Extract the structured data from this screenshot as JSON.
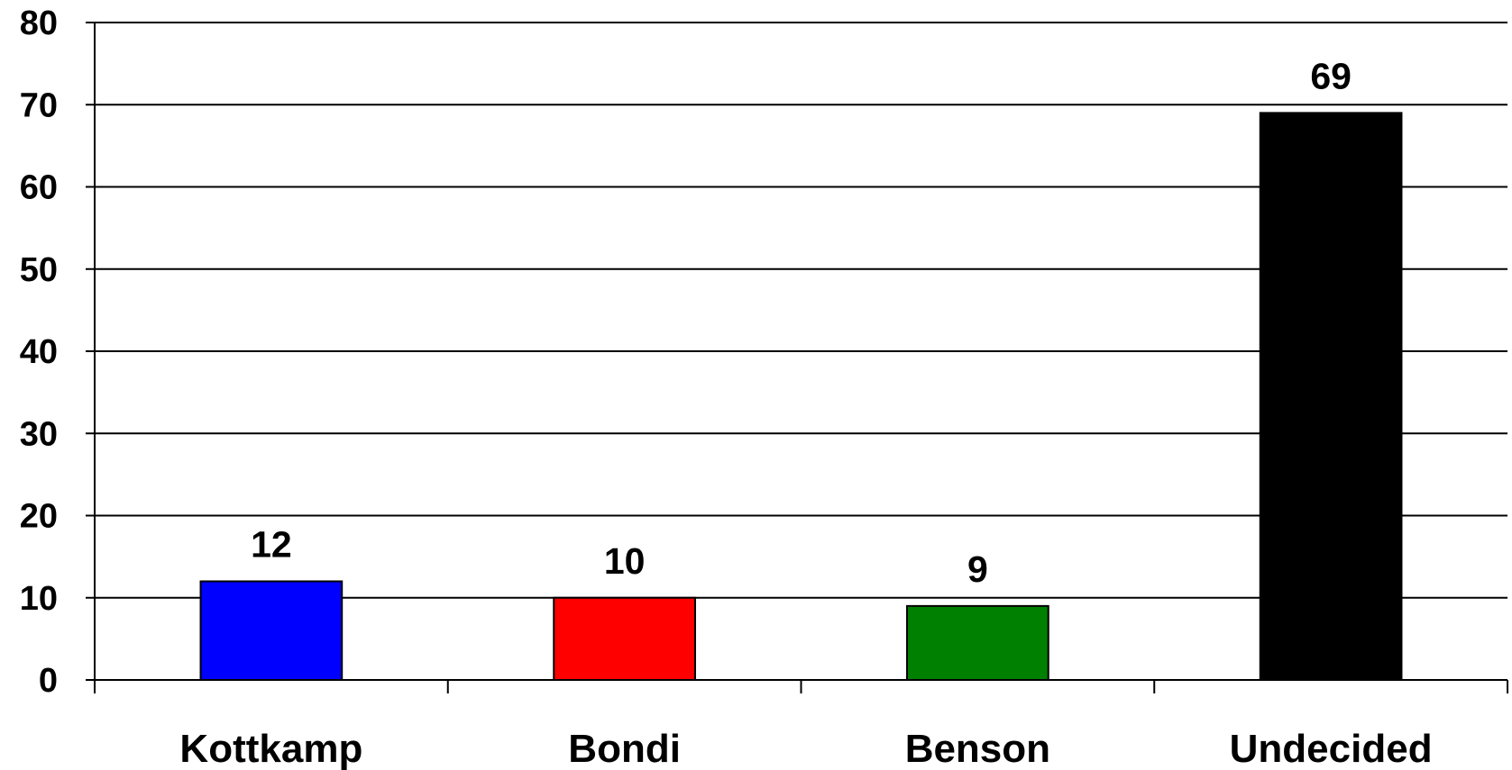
{
  "chart_data": {
    "type": "bar",
    "categories": [
      "Kottkamp",
      "Bondi",
      "Benson",
      "Undecided"
    ],
    "values": [
      12,
      10,
      9,
      69
    ],
    "colors": [
      "#0000ff",
      "#ff0000",
      "#008000",
      "#000000"
    ],
    "title": "",
    "xlabel": "",
    "ylabel": "",
    "ylim": [
      0,
      80
    ],
    "yticks": [
      0,
      10,
      20,
      30,
      40,
      50,
      60,
      70,
      80
    ],
    "grid": true,
    "legend": "none",
    "data_labels": true
  }
}
